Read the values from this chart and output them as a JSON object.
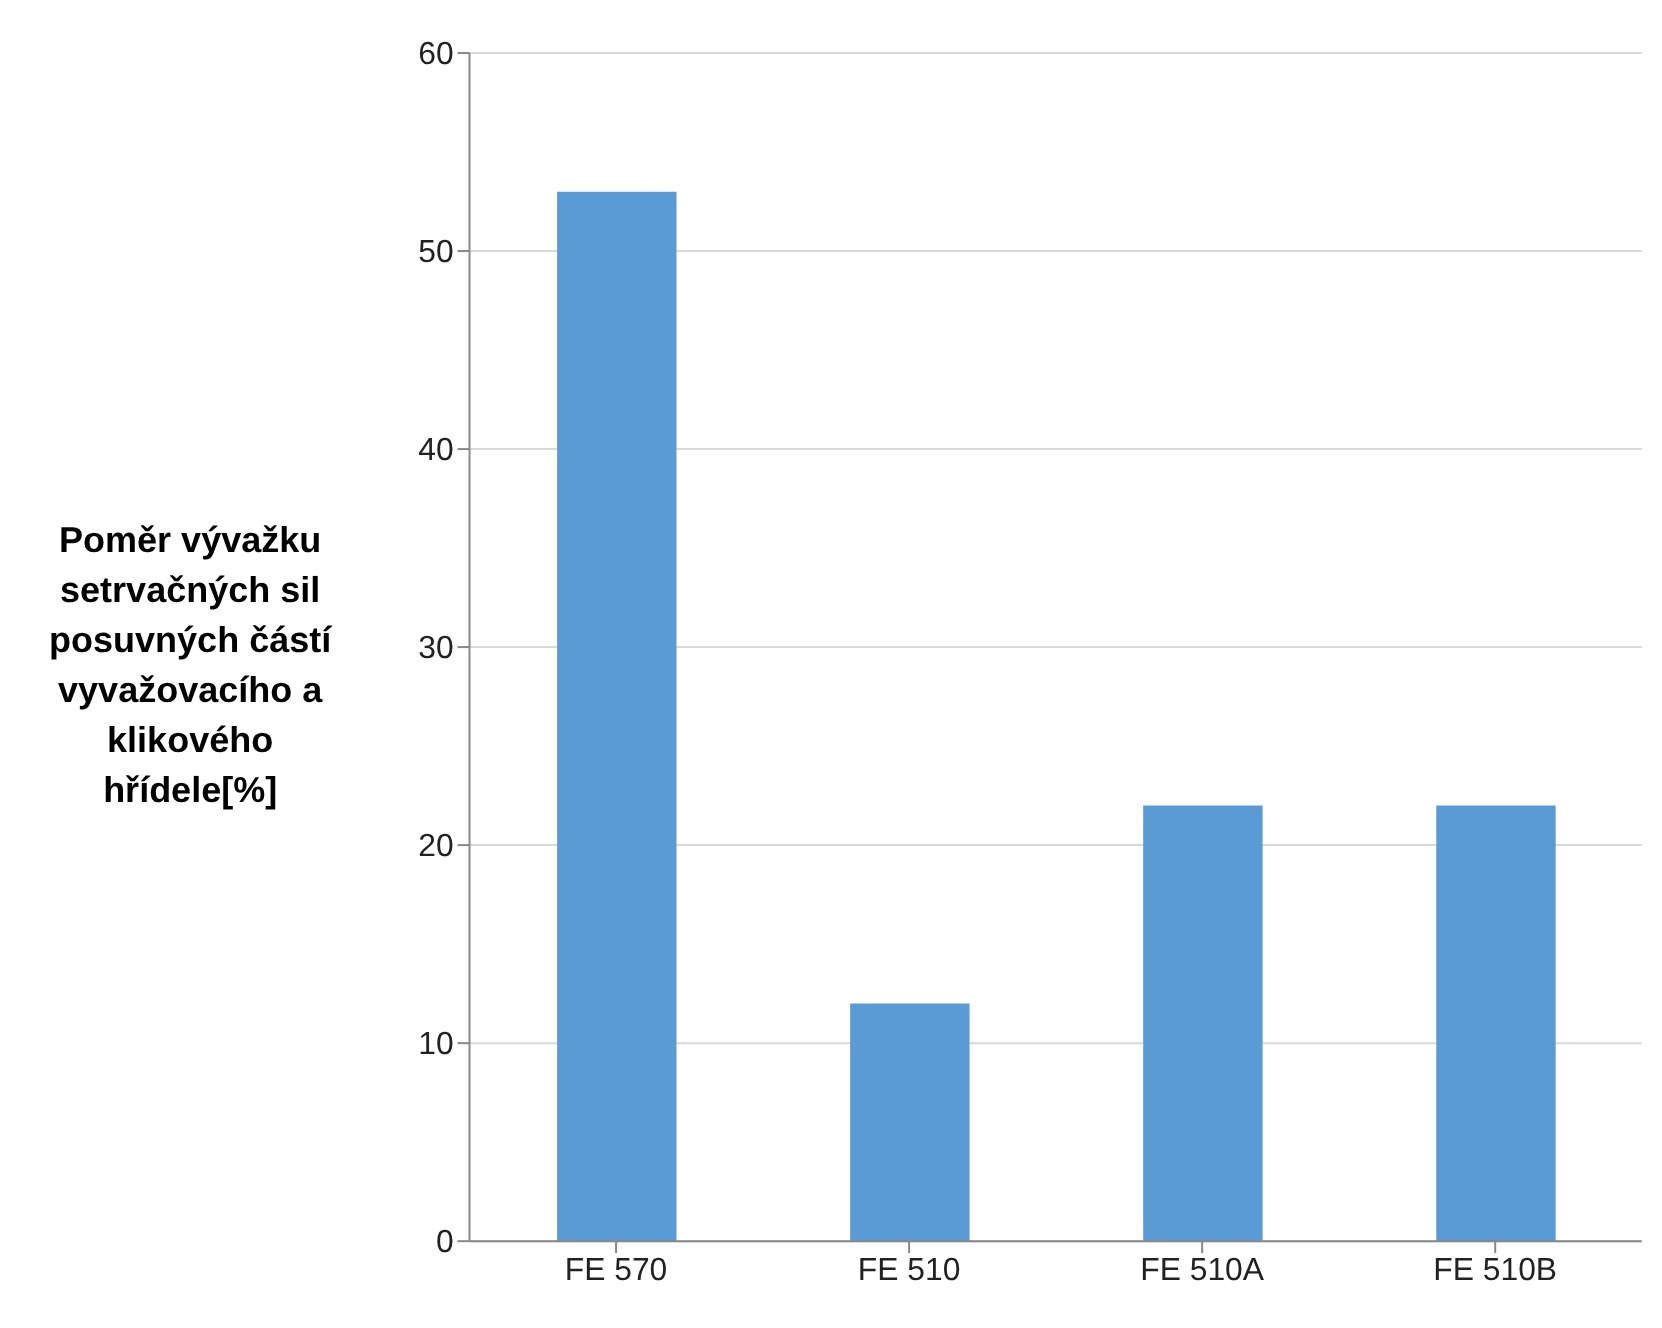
{
  "chart_data": {
    "type": "bar",
    "ylabel": "Poměr vývažku setrvačných sil posuvných částí vyvažovacího a klikového hřídele[%]",
    "categories": [
      "FE 570",
      "FE 510",
      "FE 510A",
      "FE 510B"
    ],
    "values": [
      53,
      12,
      22,
      22
    ],
    "color": "#5b9bd5",
    "ylim": [
      0,
      60
    ],
    "yticks": [
      0,
      10,
      20,
      30,
      40,
      50,
      60
    ],
    "grid": "y"
  }
}
